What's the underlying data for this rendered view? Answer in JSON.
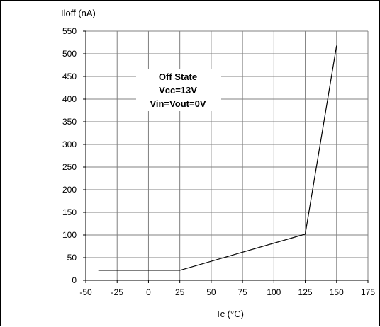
{
  "chart_data": {
    "type": "line",
    "ylabel": "Iloff (nA)",
    "xlabel": "Tc (°C)",
    "xlim": [
      -50,
      175
    ],
    "ylim": [
      0,
      550
    ],
    "xticks": [
      -50,
      -25,
      0,
      25,
      50,
      75,
      100,
      125,
      150,
      175
    ],
    "yticks": [
      0,
      50,
      100,
      150,
      200,
      250,
      300,
      350,
      400,
      450,
      500,
      550
    ],
    "grid": true,
    "series": [
      {
        "x": [
          -40,
          25,
          125,
          150
        ],
        "y": [
          22,
          22,
          102,
          518
        ]
      }
    ],
    "annotation": {
      "lines": [
        "Off State",
        "Vcc=13V",
        "Vin=Vout=0V"
      ]
    },
    "line_color": "#000000",
    "grid_color": "#808080"
  }
}
